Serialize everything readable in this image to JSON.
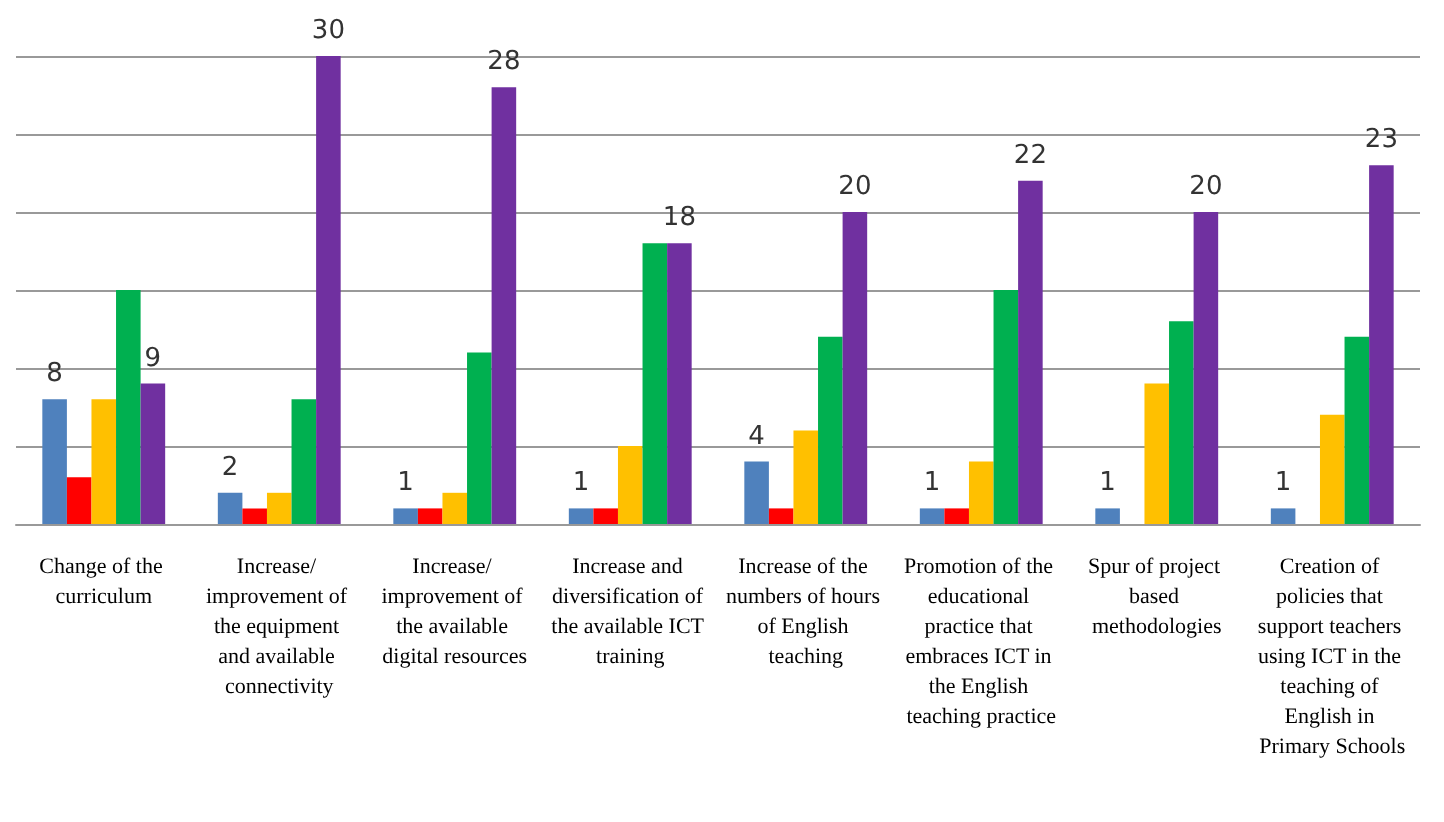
{
  "chart_data": {
    "type": "bar",
    "categories": [
      "Change of the curriculum",
      "Increase/ improvement of the equipment and available connectivity",
      "Increase/ improvement of the available digital resources",
      "Increase and diversification of the available ICT training",
      "Increase of the numbers of hours of English teaching",
      "Promotion of the educational practice that embraces ICT in the English teaching practice",
      "Spur of project based methodologies",
      "Creation of policies that support teachers using ICT in the teaching of English in Primary Schools"
    ],
    "series": [
      {
        "color": "#4f81bd",
        "values": [
          8,
          2,
          1,
          1,
          4,
          1,
          1,
          1
        ],
        "value_labels": [
          "8",
          "2",
          "1",
          "1",
          "4",
          "1",
          "1",
          "1"
        ]
      },
      {
        "color": "#ff0000",
        "values": [
          3,
          1,
          1,
          1,
          1,
          1,
          0,
          0
        ]
      },
      {
        "color": "#ffc000",
        "values": [
          8,
          2,
          2,
          5,
          6,
          4,
          9,
          7
        ]
      },
      {
        "color": "#00b050",
        "values": [
          15,
          8,
          11,
          18,
          12,
          15,
          13,
          12
        ]
      },
      {
        "color": "#7030a0",
        "values": [
          9,
          30,
          28,
          18,
          20,
          22,
          20,
          23
        ],
        "value_labels": [
          "9",
          "30",
          "28",
          "18",
          "20",
          "22",
          "20",
          "23"
        ]
      }
    ],
    "ylim": [
      0,
      30
    ],
    "yticks": [
      {
        "value": 0,
        "label": null
      },
      {
        "value": 5,
        "label": null
      },
      {
        "value": 10,
        "label": null
      },
      {
        "value": 15,
        "label": null
      },
      {
        "value": 20,
        "label": null
      },
      {
        "value": 25,
        "label": null
      },
      {
        "value": 30,
        "label": null
      }
    ],
    "grid": "y",
    "tick_labels": "x"
  }
}
